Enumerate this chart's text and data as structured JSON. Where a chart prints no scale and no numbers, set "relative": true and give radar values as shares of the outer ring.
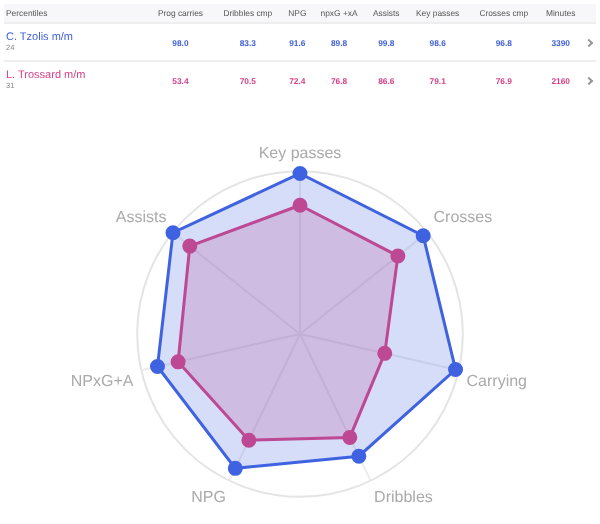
{
  "chart_data": [
    {
      "type": "other",
      "title": "Percentiles",
      "categories": [
        "Prog carries",
        "Dribbles cmp",
        "NPG",
        "npxG +xA",
        "Assists",
        "Key passes",
        "Crosses cmp",
        "Minutes"
      ],
      "series": [
        {
          "name": "C. Tzolis m/m",
          "color": "#3f5fd6",
          "values": [
            98.0,
            83.3,
            91.6,
            89.8,
            99.8,
            98.6,
            96.8,
            3390
          ],
          "value_labels": [
            "98.0",
            "83.3",
            "91.6",
            "89.8",
            "99.8",
            "98.6",
            "96.8",
            "3390"
          ]
        },
        {
          "name": "L. Trossard m/m",
          "color": "#d63f86",
          "values": [
            53.4,
            70.5,
            72.4,
            76.8,
            86.6,
            79.1,
            76.9,
            2160
          ],
          "value_labels": [
            "53.4",
            "70.5",
            "72.4",
            "76.8",
            "86.6",
            "79.1",
            "76.9",
            "2160"
          ]
        }
      ],
      "annotations": [
        "24",
        "31"
      ]
    },
    {
      "type": "radar",
      "categories": [
        "Key passes",
        "Crosses",
        "Carrying",
        "Dribbles",
        "NPG",
        "NPxG+A",
        "Assists"
      ],
      "relative": true,
      "series": [
        {
          "color": "#3f63e0",
          "values": [
            0.986,
            0.968,
            0.98,
            0.833,
            0.916,
            0.898,
            0.998
          ]
        },
        {
          "color": "#e0407f",
          "values": [
            0.791,
            0.769,
            0.534,
            0.705,
            0.724,
            0.768,
            0.866
          ]
        }
      ],
      "grid": true
    }
  ]
}
